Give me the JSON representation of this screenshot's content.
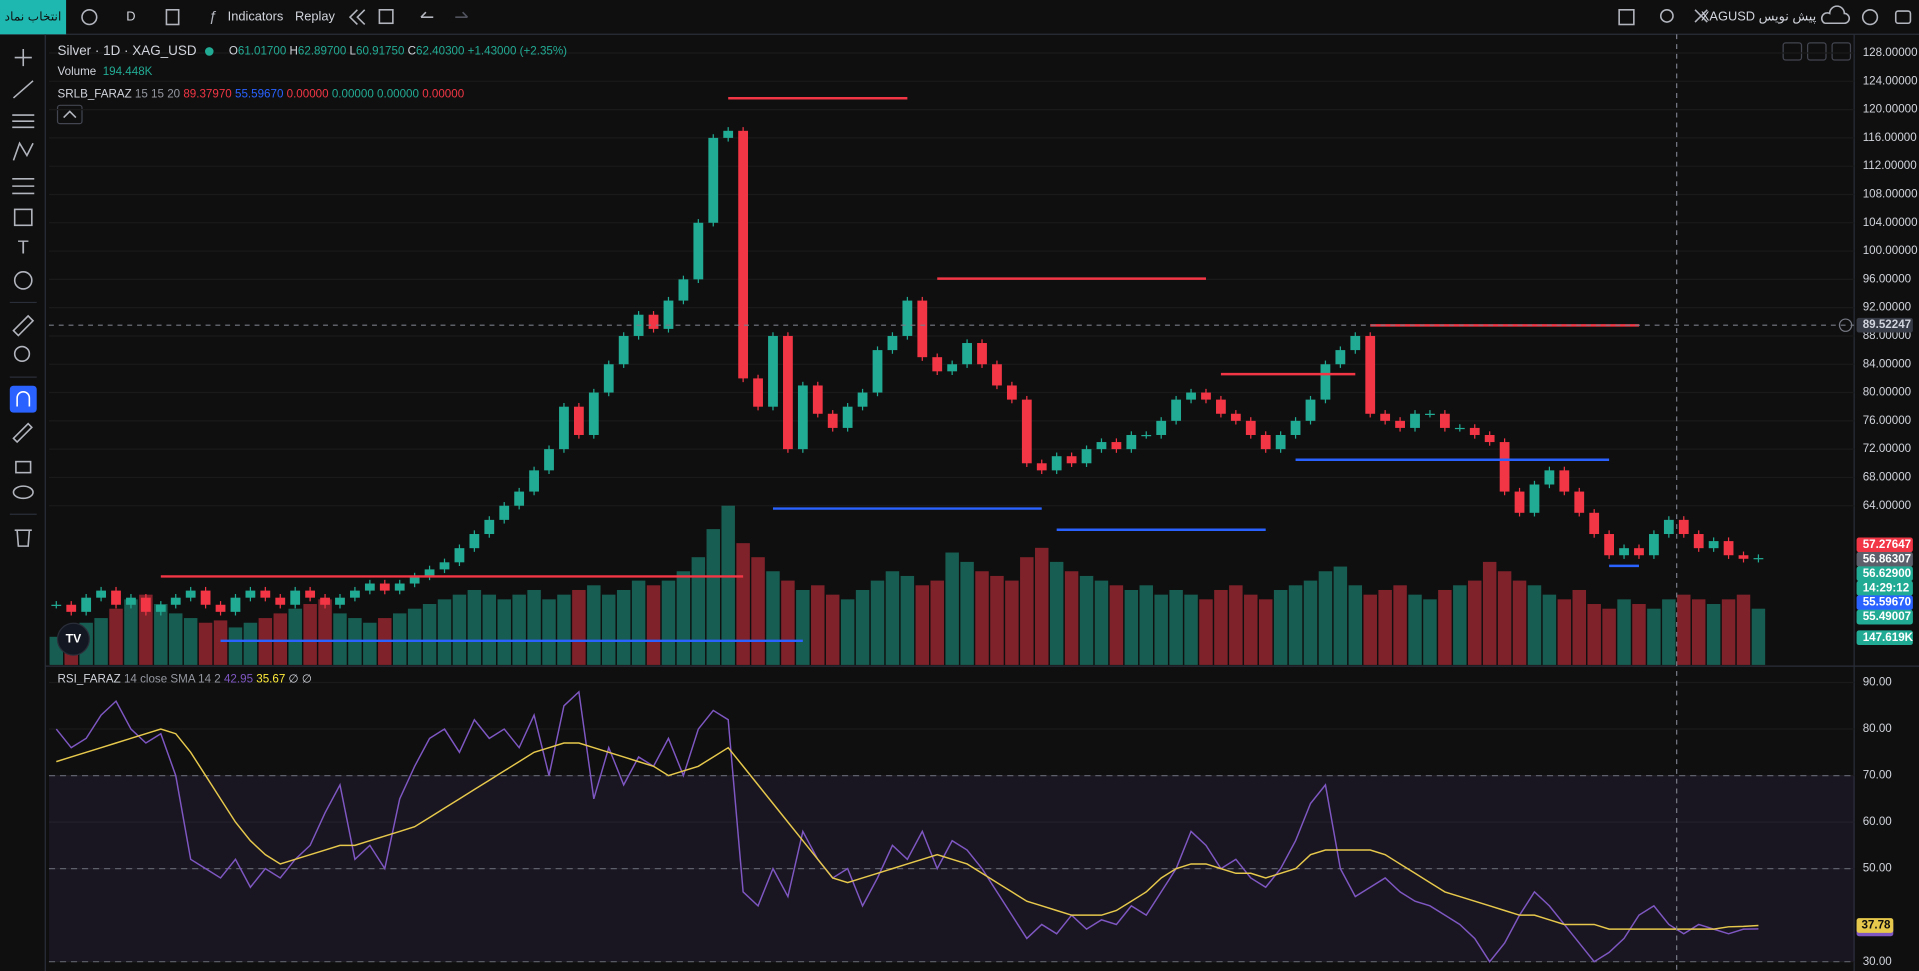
{
  "toolbar": {
    "symbol_button": "انتخاب نماد",
    "interval": "D",
    "indicators": "Indicators",
    "replay": "Replay",
    "draft": "XAGUSD پیش نویس"
  },
  "legend": {
    "symbol": "Silver · 1D · XAG_USD",
    "ohlc": [
      {
        "text": "O",
        "color": "#d1d4dc"
      },
      {
        "text": "61.01700",
        "color": "#22ab94"
      },
      {
        "text": " H",
        "color": "#d1d4dc"
      },
      {
        "text": "62.89700",
        "color": "#22ab94"
      },
      {
        "text": " L",
        "color": "#d1d4dc"
      },
      {
        "text": "60.91750",
        "color": "#22ab94"
      },
      {
        "text": " C",
        "color": "#d1d4dc"
      },
      {
        "text": "62.40300",
        "color": "#22ab94"
      },
      {
        "text": " +1.43000 (+2.35%)",
        "color": "#22ab94"
      }
    ],
    "volume": [
      {
        "text": "Volume",
        "color": "#d1d4dc"
      },
      {
        "text": "  194.448K",
        "color": "#22ab94"
      }
    ],
    "indicator": [
      {
        "text": "SRLB_FARAZ",
        "color": "#d1d4dc"
      },
      {
        "text": " 15 15 20 ",
        "color": "#9598a1"
      },
      {
        "text": "89.37970 ",
        "color": "#f23645"
      },
      {
        "text": "55.59670 ",
        "color": "#2962ff"
      },
      {
        "text": "0.00000 ",
        "color": "#f23645"
      },
      {
        "text": "0.00000 ",
        "color": "#22ab94"
      },
      {
        "text": "0.00000 ",
        "color": "#22ab94"
      },
      {
        "text": "0.00000",
        "color": "#f23645"
      }
    ],
    "rsi": [
      {
        "text": "RSI_FARAZ",
        "color": "#d1d4dc"
      },
      {
        "text": " 14 close SMA 14 2 ",
        "color": "#9598a1"
      },
      {
        "text": "42.95 ",
        "color": "#7e57c2"
      },
      {
        "text": "35.67 ",
        "color": "#ffeb3b"
      },
      {
        "text": "∅ ∅",
        "color": "#d1d4dc"
      }
    ]
  },
  "chart_data": [
    {
      "type": "candlestick",
      "up_color": "#22ab94",
      "down_color": "#f23645",
      "closes": [
        50,
        49,
        51,
        52,
        50,
        51,
        49,
        50,
        51,
        52,
        50,
        49,
        51,
        52,
        51,
        50,
        52,
        51,
        50,
        51,
        52,
        53,
        52,
        53,
        54,
        55,
        56,
        58,
        60,
        62,
        64,
        66,
        69,
        72,
        78,
        74,
        80,
        84,
        88,
        91,
        89,
        93,
        96,
        104,
        116,
        117,
        82,
        78,
        88,
        72,
        81,
        77,
        75,
        78,
        80,
        86,
        88,
        93,
        85,
        83,
        84,
        87,
        84,
        81,
        79,
        70,
        69,
        71,
        70,
        72,
        73,
        72,
        74,
        74,
        76,
        79,
        80,
        79,
        77,
        76,
        74,
        72,
        74,
        76,
        79,
        84,
        86,
        88,
        77,
        76,
        75,
        77,
        77,
        75,
        75,
        74,
        73,
        66,
        63,
        67,
        69,
        66,
        63,
        60,
        57,
        58,
        57,
        60,
        62,
        60,
        58,
        59,
        57,
        56.5,
        56.6
      ],
      "volumes": [
        60,
        80,
        90,
        100,
        120,
        140,
        150,
        130,
        110,
        100,
        90,
        95,
        80,
        90,
        100,
        110,
        120,
        130,
        140,
        110,
        100,
        90,
        100,
        110,
        120,
        130,
        140,
        150,
        160,
        150,
        140,
        150,
        160,
        140,
        150,
        160,
        170,
        150,
        160,
        180,
        170,
        180,
        200,
        230,
        290,
        340,
        260,
        230,
        200,
        180,
        160,
        170,
        150,
        140,
        160,
        180,
        200,
        190,
        170,
        180,
        240,
        220,
        200,
        190,
        180,
        230,
        250,
        220,
        200,
        190,
        180,
        170,
        160,
        170,
        150,
        160,
        150,
        140,
        160,
        170,
        150,
        140,
        160,
        170,
        180,
        200,
        210,
        170,
        150,
        160,
        170,
        150,
        140,
        160,
        170,
        180,
        220,
        200,
        180,
        170,
        150,
        140,
        160,
        130,
        120,
        140,
        130,
        120,
        140,
        150,
        140,
        130,
        140,
        150,
        120
      ],
      "levels": [
        {
          "value": 121.6,
          "from": 45,
          "to": 57,
          "color": "#f23645"
        },
        {
          "value": 96.1,
          "from": 59,
          "to": 77,
          "color": "#f23645"
        },
        {
          "value": 82.6,
          "from": 78,
          "to": 87,
          "color": "#f23645"
        },
        {
          "value": 89.5,
          "from": 88,
          "to": 106,
          "color": "#f23645"
        },
        {
          "value": 54,
          "from": 7,
          "to": 46,
          "color": "#f23645"
        },
        {
          "value": 63.6,
          "from": 48,
          "to": 66,
          "color": "#2962ff"
        },
        {
          "value": 60.6,
          "from": 67,
          "to": 81,
          "color": "#2962ff"
        },
        {
          "value": 70.5,
          "from": 83,
          "to": 104,
          "color": "#2962ff"
        },
        {
          "value": 44.9,
          "from": 11,
          "to": 50,
          "color": "#2962ff"
        },
        {
          "value": 55.5,
          "from": 104,
          "to": 106,
          "color": "#2962ff"
        }
      ],
      "ylim": [
        41.5,
        130.3
      ],
      "yticks": [
        {
          "value": 128,
          "label": "128.00000"
        },
        {
          "value": 124,
          "label": "124.00000"
        },
        {
          "value": 120,
          "label": "120.00000"
        },
        {
          "value": 116,
          "label": "116.00000"
        },
        {
          "value": 112,
          "label": "112.00000"
        },
        {
          "value": 108,
          "label": "108.00000"
        },
        {
          "value": 104,
          "label": "104.00000"
        },
        {
          "value": 100,
          "label": "100.00000"
        },
        {
          "value": 96,
          "label": "96.00000"
        },
        {
          "value": 92,
          "label": "92.00000"
        },
        {
          "value": 88,
          "label": "88.00000"
        },
        {
          "value": 84,
          "label": "84.00000"
        },
        {
          "value": 80,
          "label": "80.00000"
        },
        {
          "value": 76,
          "label": "76.00000"
        },
        {
          "value": 72,
          "label": "72.00000"
        },
        {
          "value": 68,
          "label": "68.00000"
        },
        {
          "value": 64,
          "label": "64.00000"
        }
      ],
      "crosshair": 89.52247,
      "tags": [
        {
          "label": "57.27647",
          "color": "#f23645"
        },
        {
          "label": "56.86307",
          "color": "#5d606b"
        },
        {
          "label": "56.62900",
          "color": "#22ab94"
        },
        {
          "label": "14:29:12",
          "color": "#22ab94"
        },
        {
          "label": "55.59670",
          "color": "#2962ff"
        },
        {
          "label": "55.49007",
          "color": "#22ab94"
        },
        {
          "label": "147.619K",
          "color": "#22ab94"
        }
      ]
    },
    {
      "type": "line",
      "ylim": [
        28,
        93
      ],
      "yticks": [
        {
          "value": 90,
          "label": "90.00"
        },
        {
          "value": 80,
          "label": "80.00"
        },
        {
          "value": 70,
          "label": "70.00"
        },
        {
          "value": 60,
          "label": "60.00"
        },
        {
          "value": 50,
          "label": "50.00"
        },
        {
          "value": 30,
          "label": "30.00"
        }
      ],
      "band": [
        30,
        70
      ],
      "dashed": [
        70,
        50,
        30
      ],
      "series": [
        {
          "name": "RSI",
          "color": "#7e57c2",
          "values": [
            80,
            76,
            78,
            83,
            86,
            80,
            77,
            79,
            70,
            52,
            50,
            48,
            52,
            46,
            50,
            48,
            52,
            55,
            62,
            68,
            52,
            55,
            50,
            65,
            72,
            78,
            80,
            75,
            82,
            78,
            80,
            76,
            83,
            70,
            85,
            88,
            65,
            76,
            68,
            74,
            72,
            78,
            70,
            80,
            84,
            82,
            45,
            42,
            50,
            44,
            58,
            52,
            48,
            50,
            42,
            48,
            55,
            52,
            58,
            50,
            56,
            54,
            50,
            45,
            40,
            35,
            38,
            36,
            40,
            37,
            39,
            38,
            42,
            40,
            45,
            50,
            58,
            55,
            50,
            52,
            48,
            46,
            50,
            56,
            64,
            68,
            50,
            44,
            46,
            48,
            45,
            43,
            42,
            40,
            38,
            35,
            30,
            34,
            40,
            45,
            42,
            38,
            34,
            30,
            32,
            35,
            40,
            42,
            38,
            36,
            38,
            37,
            36,
            37,
            37.06
          ],
          "tag": "37.06"
        },
        {
          "name": "SMA",
          "color": "#e6c84c",
          "values": [
            73,
            74,
            75,
            76,
            77,
            78,
            79,
            80,
            79,
            75,
            70,
            65,
            60,
            56,
            53,
            51,
            52,
            53,
            54,
            55,
            55,
            56,
            57,
            58,
            59,
            61,
            63,
            65,
            67,
            69,
            71,
            73,
            75,
            76,
            77,
            77,
            76,
            75,
            74,
            73,
            72,
            70,
            71,
            72,
            74,
            76,
            72,
            68,
            64,
            60,
            56,
            52,
            48,
            47,
            48,
            49,
            50,
            51,
            52,
            53,
            52,
            51,
            49,
            47,
            45,
            43,
            42,
            41,
            40,
            40,
            40,
            41,
            43,
            45,
            48,
            50,
            51,
            51,
            50,
            49,
            49,
            48,
            49,
            50,
            53,
            54,
            54,
            54,
            54,
            53,
            51,
            49,
            47,
            45,
            44,
            43,
            42,
            41,
            40,
            40,
            39,
            38,
            38,
            38,
            37,
            37,
            37,
            37,
            37,
            37,
            37,
            37,
            37.5,
            37.6,
            37.78
          ],
          "tag": "37.78"
        }
      ]
    }
  ]
}
